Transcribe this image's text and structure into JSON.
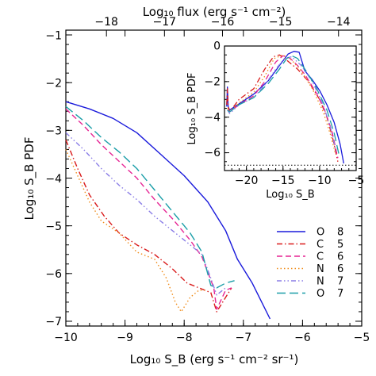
{
  "chart_data": [
    {
      "type": "line",
      "xlabel": "Log₁₀ S_B (erg s⁻¹ cm⁻² sr⁻¹)",
      "ylabel": "Log₁₀ S_B PDF",
      "top_xlabel": "Log₁₀ flux (erg s⁻¹ cm⁻²)",
      "xlim": [
        -10,
        -5
      ],
      "ylim": [
        -7.1,
        -0.9
      ],
      "top_xlim": [
        -18.7,
        -13.6
      ],
      "xticks": [
        -10,
        -9,
        -8,
        -7,
        -6,
        -5
      ],
      "yticks": [
        -7,
        -6,
        -5,
        -4,
        -3,
        -2,
        -1
      ],
      "top_xticks": [
        -18,
        -17,
        -16,
        -15,
        -14
      ],
      "legend_position": "lower right",
      "series": [
        {
          "name": "O 8",
          "color": "#1a1adb",
          "dash": "solid",
          "x": [
            -10,
            -9.6,
            -9.2,
            -8.8,
            -8.4,
            -8.0,
            -7.6,
            -7.3,
            -7.1,
            -6.85,
            -6.55
          ],
          "y": [
            -2.4,
            -2.55,
            -2.75,
            -3.05,
            -3.5,
            -3.95,
            -4.5,
            -5.1,
            -5.7,
            -6.2,
            -6.95
          ]
        },
        {
          "name": "C 5",
          "color": "#d91a1a",
          "dash": "dashdot",
          "x": [
            -10,
            -9.8,
            -9.6,
            -9.35,
            -9.1,
            -8.8,
            -8.5,
            -8.2,
            -7.95,
            -7.75,
            -7.55,
            -7.45,
            -7.3,
            -7.2
          ],
          "y": [
            -3.2,
            -3.8,
            -4.35,
            -4.8,
            -5.15,
            -5.4,
            -5.6,
            -5.9,
            -6.2,
            -6.3,
            -6.4,
            -6.8,
            -6.5,
            -6.3
          ]
        },
        {
          "name": "C 6",
          "color": "#e62594",
          "dash": "dash",
          "x": [
            -10,
            -9.7,
            -9.4,
            -9.1,
            -8.8,
            -8.5,
            -8.2,
            -7.9,
            -7.7,
            -7.5,
            -7.45,
            -7.3,
            -7.2
          ],
          "y": [
            -2.55,
            -2.9,
            -3.3,
            -3.65,
            -4.0,
            -4.45,
            -4.85,
            -5.3,
            -5.65,
            -6.3,
            -6.75,
            -6.35,
            -6.3
          ]
        },
        {
          "name": "N 6",
          "color": "#f08c1a",
          "dash": "dot",
          "x": [
            -10,
            -9.8,
            -9.6,
            -9.4,
            -9.1,
            -8.8,
            -8.5,
            -8.3,
            -8.15,
            -8.05,
            -7.9,
            -7.75,
            -7.65
          ],
          "y": [
            -3.4,
            -3.95,
            -4.5,
            -4.9,
            -5.15,
            -5.55,
            -5.7,
            -6.1,
            -6.6,
            -6.8,
            -6.5,
            -6.35,
            -6.35
          ]
        },
        {
          "name": "N 7",
          "color": "#8a7de6",
          "dash": "dashdotdot",
          "x": [
            -10,
            -9.7,
            -9.4,
            -9.1,
            -8.8,
            -8.5,
            -8.2,
            -7.9,
            -7.7,
            -7.55,
            -7.45,
            -7.3
          ],
          "y": [
            -3.05,
            -3.4,
            -3.8,
            -4.15,
            -4.45,
            -4.8,
            -5.1,
            -5.4,
            -5.6,
            -6.1,
            -6.45,
            -6.3
          ]
        },
        {
          "name": "O 7",
          "color": "#1a9ea8",
          "dash": "longdash",
          "x": [
            -10,
            -9.7,
            -9.4,
            -9.1,
            -8.8,
            -8.5,
            -8.2,
            -7.9,
            -7.7,
            -7.55,
            -7.45,
            -7.3,
            -7.15
          ],
          "y": [
            -2.5,
            -2.8,
            -3.15,
            -3.45,
            -3.8,
            -4.25,
            -4.7,
            -5.15,
            -5.55,
            -6.25,
            -6.3,
            -6.2,
            -6.15
          ]
        }
      ]
    },
    {
      "type": "line",
      "xlabel": "Log₁₀ S_B",
      "ylabel": "Log₁₀ S_B PDF",
      "xlim": [
        -23,
        -5
      ],
      "ylim": [
        -7,
        0
      ],
      "xticks": [
        -20,
        -15,
        -10,
        -5
      ],
      "yticks": [
        -6,
        -4,
        -2,
        0
      ],
      "reference_line_y": -6.7,
      "series": [
        {
          "name": "O 8",
          "color": "#1a1adb",
          "dash": "solid",
          "x": [
            -22.7,
            -22.6,
            -22.5,
            -22.3,
            -21.0,
            -19.0,
            -17.0,
            -15.5,
            -14.3,
            -13.5,
            -12.8,
            -12.0,
            -11.0,
            -10.0,
            -9.0,
            -8.0,
            -7.2,
            -6.7
          ],
          "y": [
            -3.4,
            -2.3,
            -3.4,
            -3.6,
            -3.25,
            -2.7,
            -1.95,
            -1.1,
            -0.45,
            -0.3,
            -0.35,
            -1.4,
            -1.9,
            -2.5,
            -3.3,
            -4.3,
            -5.5,
            -6.6
          ]
        },
        {
          "name": "C 5",
          "color": "#d91a1a",
          "dash": "dashdot",
          "x": [
            -22.7,
            -22.6,
            -22.5,
            -22.3,
            -21.0,
            -19.0,
            -17.5,
            -16.3,
            -15.5,
            -14.5,
            -13.0,
            -11.5,
            -10.0,
            -9.0,
            -8.2,
            -7.5
          ],
          "y": [
            -3.3,
            -2.4,
            -3.4,
            -3.7,
            -3.0,
            -2.4,
            -1.3,
            -0.6,
            -0.5,
            -0.8,
            -1.3,
            -2.0,
            -3.0,
            -4.0,
            -5.2,
            -6.5
          ]
        },
        {
          "name": "C 6",
          "color": "#e62594",
          "dash": "dash",
          "x": [
            -22.6,
            -22.3,
            -21.0,
            -19.0,
            -17.5,
            -16.0,
            -15.0,
            -14.0,
            -13.0,
            -12.0,
            -10.5,
            -9.3,
            -8.3,
            -7.5
          ],
          "y": [
            -3.6,
            -3.7,
            -3.3,
            -2.8,
            -2.0,
            -0.9,
            -0.55,
            -0.7,
            -1.1,
            -1.6,
            -2.6,
            -3.6,
            -4.8,
            -6.3
          ]
        },
        {
          "name": "N 6",
          "color": "#f08c1a",
          "dash": "dot",
          "x": [
            -22.6,
            -22.3,
            -21.0,
            -19.0,
            -17.5,
            -16.2,
            -15.0,
            -13.8,
            -12.5,
            -11.0,
            -9.5,
            -8.5,
            -7.8
          ],
          "y": [
            -3.5,
            -3.7,
            -3.2,
            -2.6,
            -1.7,
            -0.7,
            -0.5,
            -0.8,
            -1.4,
            -2.4,
            -3.7,
            -5.0,
            -6.1
          ]
        },
        {
          "name": "N 7",
          "color": "#8a7de6",
          "dash": "dashdotdot",
          "x": [
            -22.6,
            -22.3,
            -21.0,
            -19.0,
            -17.5,
            -16.0,
            -14.8,
            -13.8,
            -12.5,
            -11.0,
            -9.5,
            -8.5,
            -7.7
          ],
          "y": [
            -3.6,
            -3.8,
            -3.3,
            -2.9,
            -2.2,
            -1.3,
            -0.7,
            -0.6,
            -1.1,
            -2.0,
            -3.3,
            -4.6,
            -6.0
          ]
        },
        {
          "name": "O 7",
          "color": "#1a9ea8",
          "dash": "longdash",
          "x": [
            -22.6,
            -22.3,
            -21.0,
            -19.0,
            -17.0,
            -15.5,
            -14.5,
            -13.8,
            -13.0,
            -12.0,
            -10.5,
            -9.0,
            -8.0,
            -7.3
          ],
          "y": [
            -3.6,
            -3.7,
            -3.3,
            -2.9,
            -2.1,
            -1.3,
            -0.7,
            -0.55,
            -0.7,
            -1.3,
            -2.3,
            -3.6,
            -4.9,
            -6.2
          ]
        }
      ]
    }
  ]
}
